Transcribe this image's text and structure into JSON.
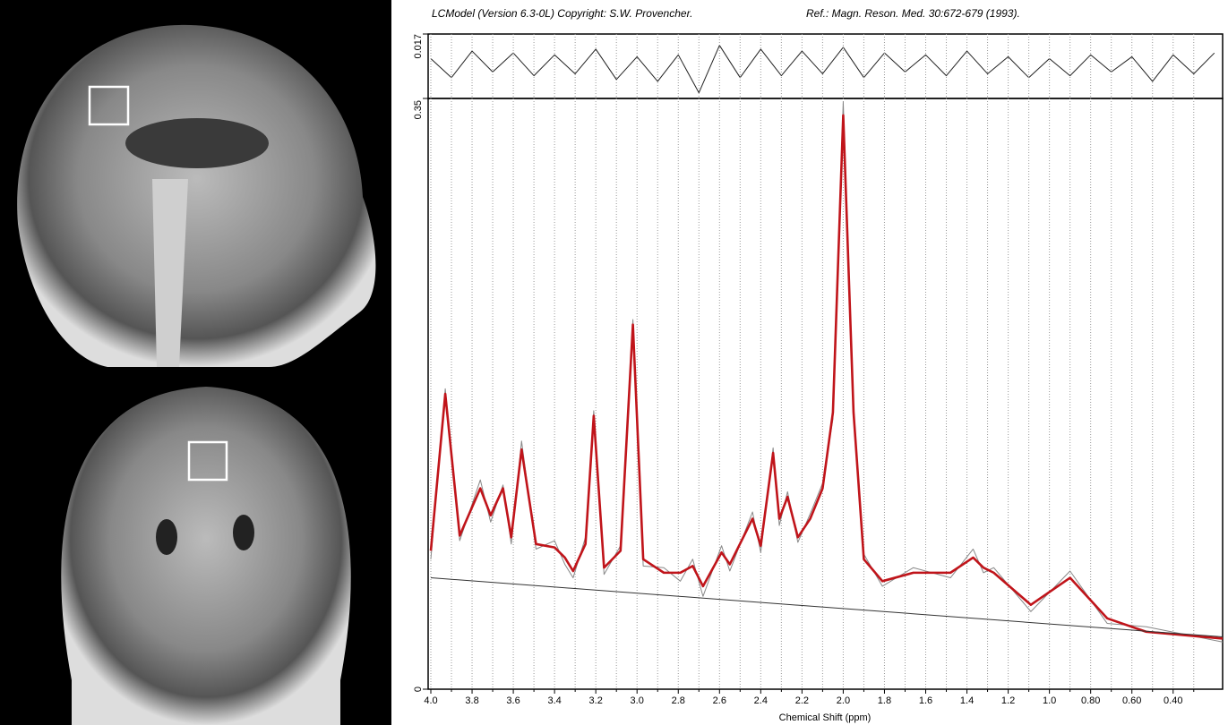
{
  "chart_data": [
    {
      "type": "line",
      "title": "LCModel (Version 6.3-0L) Copyright: S.W. Provencher.",
      "subtitle": "Ref.: Magn. Reson. Med. 30:672-679 (1993).",
      "xlim": [
        4.0,
        0.16
      ],
      "ylim": [
        -0.017,
        0.017
      ],
      "yticks": [
        0.017
      ],
      "series": [
        {
          "color": "#222222",
          "x": [
            4.0,
            3.9,
            3.8,
            3.7,
            3.6,
            3.5,
            3.4,
            3.3,
            3.2,
            3.1,
            3.0,
            2.9,
            2.8,
            2.7,
            2.6,
            2.5,
            2.4,
            2.3,
            2.2,
            2.1,
            2.0,
            1.9,
            1.8,
            1.7,
            1.6,
            1.5,
            1.4,
            1.3,
            1.2,
            1.1,
            1.0,
            0.9,
            0.8,
            0.7,
            0.6,
            0.5,
            0.4,
            0.3,
            0.2
          ],
          "values": [
            0.004,
            -0.006,
            0.008,
            -0.003,
            0.007,
            -0.005,
            0.006,
            -0.004,
            0.009,
            -0.007,
            0.005,
            -0.008,
            0.006,
            -0.014,
            0.011,
            -0.006,
            0.009,
            -0.005,
            0.008,
            -0.004,
            0.01,
            -0.006,
            0.007,
            -0.003,
            0.006,
            -0.005,
            0.008,
            -0.004,
            0.005,
            -0.006,
            0.004,
            -0.005,
            0.006,
            -0.003,
            0.005,
            -0.008,
            0.006,
            -0.004,
            0.007
          ]
        }
      ]
    },
    {
      "type": "line",
      "x_label": "Chemical Shift (ppm)",
      "xlim": [
        4.0,
        0.16
      ],
      "ylim": [
        0,
        0.35
      ],
      "yticks": [
        0,
        0.35
      ],
      "xticks": [
        {
          "value": 4,
          "label": "4.0"
        },
        3.8,
        3.6,
        3.4,
        3.2,
        {
          "value": 3,
          "label": "3.0"
        },
        2.8,
        2.6,
        2.4,
        2.2,
        {
          "value": 2,
          "label": "2.0"
        },
        1.8,
        1.6,
        1.4,
        1.2,
        {
          "value": 1,
          "label": "1.0"
        },
        {
          "value": 0.8,
          "label": "0.80"
        },
        {
          "value": 0.6,
          "label": "0.60"
        },
        {
          "value": 0.4,
          "label": "0.40"
        }
      ],
      "minor_xticks": [
        3.9,
        3.7,
        3.5,
        3.3,
        3.1,
        2.9,
        2.7,
        2.5,
        2.3,
        2.1,
        1.9,
        1.7,
        1.5,
        1.3,
        1.1,
        0.9,
        0.7,
        0.5,
        0.3
      ],
      "grid": true,
      "series": [
        {
          "color": "#888888",
          "x": [
            4.0,
            3.93,
            3.86,
            3.76,
            3.71,
            3.65,
            3.61,
            3.56,
            3.49,
            3.4,
            3.35,
            3.31,
            3.25,
            3.21,
            3.16,
            3.08,
            3.02,
            2.97,
            2.87,
            2.79,
            2.73,
            2.68,
            2.59,
            2.55,
            2.44,
            2.4,
            2.34,
            2.31,
            2.27,
            2.22,
            2.16,
            2.1,
            2.05,
            2.0,
            1.95,
            1.9,
            1.81,
            1.66,
            1.48,
            1.37,
            1.32,
            1.27,
            1.09,
            0.9,
            0.72,
            0.53,
            0.16
          ],
          "values": [
            0.077,
            0.178,
            0.088,
            0.124,
            0.099,
            0.121,
            0.086,
            0.147,
            0.083,
            0.088,
            0.074,
            0.066,
            0.09,
            0.165,
            0.068,
            0.085,
            0.219,
            0.073,
            0.072,
            0.064,
            0.077,
            0.055,
            0.085,
            0.07,
            0.105,
            0.081,
            0.143,
            0.097,
            0.117,
            0.087,
            0.104,
            0.122,
            0.16,
            0.348,
            0.168,
            0.08,
            0.061,
            0.072,
            0.066,
            0.083,
            0.069,
            0.072,
            0.046,
            0.07,
            0.039,
            0.037,
            0.028
          ]
        },
        {
          "color": "#c0141a",
          "x": [
            4.0,
            3.93,
            3.86,
            3.76,
            3.71,
            3.65,
            3.61,
            3.56,
            3.49,
            3.4,
            3.35,
            3.31,
            3.25,
            3.21,
            3.16,
            3.08,
            3.02,
            2.97,
            2.87,
            2.79,
            2.73,
            2.68,
            2.59,
            2.55,
            2.44,
            2.4,
            2.34,
            2.31,
            2.27,
            2.22,
            2.16,
            2.1,
            2.05,
            2.0,
            1.95,
            1.9,
            1.81,
            1.66,
            1.48,
            1.37,
            1.32,
            1.27,
            1.09,
            0.9,
            0.72,
            0.53,
            0.16
          ],
          "values": [
            0.082,
            0.175,
            0.091,
            0.119,
            0.103,
            0.119,
            0.09,
            0.142,
            0.086,
            0.084,
            0.078,
            0.07,
            0.086,
            0.162,
            0.072,
            0.082,
            0.216,
            0.077,
            0.069,
            0.069,
            0.073,
            0.061,
            0.081,
            0.074,
            0.101,
            0.085,
            0.14,
            0.101,
            0.114,
            0.09,
            0.101,
            0.119,
            0.164,
            0.34,
            0.164,
            0.077,
            0.064,
            0.069,
            0.069,
            0.078,
            0.072,
            0.069,
            0.05,
            0.066,
            0.042,
            0.034,
            0.03
          ]
        },
        {
          "color": "#333333",
          "x": [
            4.0,
            0.16
          ],
          "values": [
            0.066,
            0.031
          ]
        }
      ]
    }
  ]
}
